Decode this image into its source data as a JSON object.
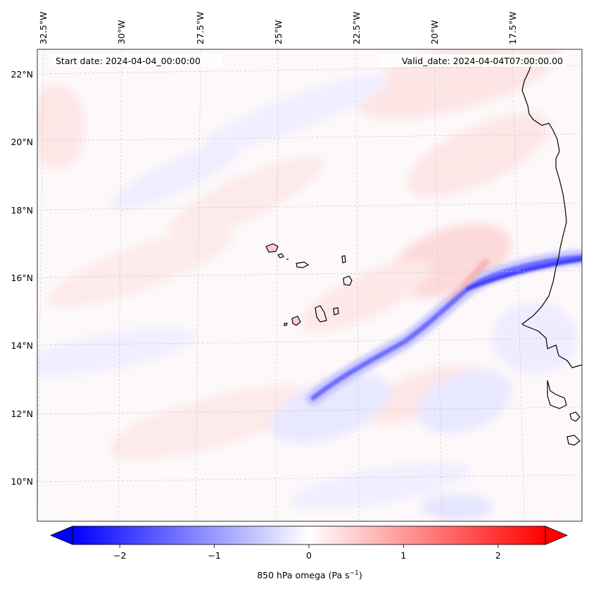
{
  "map": {
    "start_label": "Start date: 2024-04-04_00:00:00",
    "valid_label": "Valid_date: 2024-04-04T07:00:00.00",
    "longitude_labels": [
      "32.5°W",
      "30°W",
      "27.5°W",
      "25°W",
      "22.5°W",
      "20°W",
      "17.5°W"
    ],
    "latitude_labels": [
      "22°N",
      "20°N",
      "18°N",
      "16°N",
      "14°N",
      "12°N",
      "10°N"
    ]
  },
  "colorbar": {
    "ticks": [
      -2,
      -1,
      0,
      1,
      2
    ],
    "tick_labels": [
      "−2",
      "−1",
      "0",
      "1",
      "2"
    ],
    "range": [
      -2.5,
      2.5
    ],
    "label_main": "850 hPa omega (Pa s",
    "label_exponent": "−1",
    "label_close": ")",
    "colormap": "bwr",
    "colors": {
      "negative": "#0000ff",
      "neutral": "#ffffff",
      "positive": "#ff0000"
    }
  }
}
